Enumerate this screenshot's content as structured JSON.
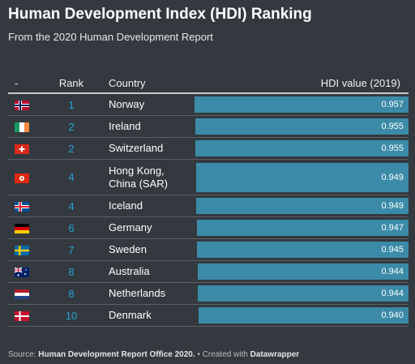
{
  "header": {
    "title": "Human Development Index (HDI) Ranking",
    "subtitle": "From the 2020 Human Development Report"
  },
  "columns": {
    "flag": "-",
    "rank": "Rank",
    "country": "Country",
    "hdi": "HDI value (2019)"
  },
  "colors": {
    "background": "#33393f",
    "bar": "#3b8ba8",
    "rank_text": "#29a3d6"
  },
  "chart_data": {
    "type": "table",
    "title": "Human Development Index (HDI) Ranking",
    "subtitle": "From the 2020 Human Development Report",
    "columns": [
      "-",
      "Rank",
      "Country",
      "HDI value (2019)"
    ],
    "rows": [
      {
        "flag": "norway-flag-icon",
        "rank": "1",
        "country": "Norway",
        "hdi": "0.957",
        "value": 0.957
      },
      {
        "flag": "ireland-flag-icon",
        "rank": "2",
        "country": "Ireland",
        "hdi": "0.955",
        "value": 0.955
      },
      {
        "flag": "switzerland-flag-icon",
        "rank": "2",
        "country": "Switzerland",
        "hdi": "0.955",
        "value": 0.955
      },
      {
        "flag": "hong-kong-flag-icon",
        "rank": "4",
        "country": "Hong Kong, China (SAR)",
        "hdi": "0.949",
        "value": 0.949
      },
      {
        "flag": "iceland-flag-icon",
        "rank": "4",
        "country": "Iceland",
        "hdi": "0.949",
        "value": 0.949
      },
      {
        "flag": "germany-flag-icon",
        "rank": "6",
        "country": "Germany",
        "hdi": "0.947",
        "value": 0.947
      },
      {
        "flag": "sweden-flag-icon",
        "rank": "7",
        "country": "Sweden",
        "hdi": "0.945",
        "value": 0.945
      },
      {
        "flag": "australia-flag-icon",
        "rank": "8",
        "country": "Australia",
        "hdi": "0.944",
        "value": 0.944
      },
      {
        "flag": "netherlands-flag-icon",
        "rank": "8",
        "country": "Netherlands",
        "hdi": "0.944",
        "value": 0.944
      },
      {
        "flag": "denmark-flag-icon",
        "rank": "10",
        "country": "Denmark",
        "hdi": "0.940",
        "value": 0.94
      }
    ],
    "bar_scale_max": 0.957
  },
  "footer": {
    "source_prefix": "Source: ",
    "source_name": "Human Development Report Office 2020.",
    "created_prefix": " • Created with ",
    "created_tool": "Datawrapper"
  }
}
